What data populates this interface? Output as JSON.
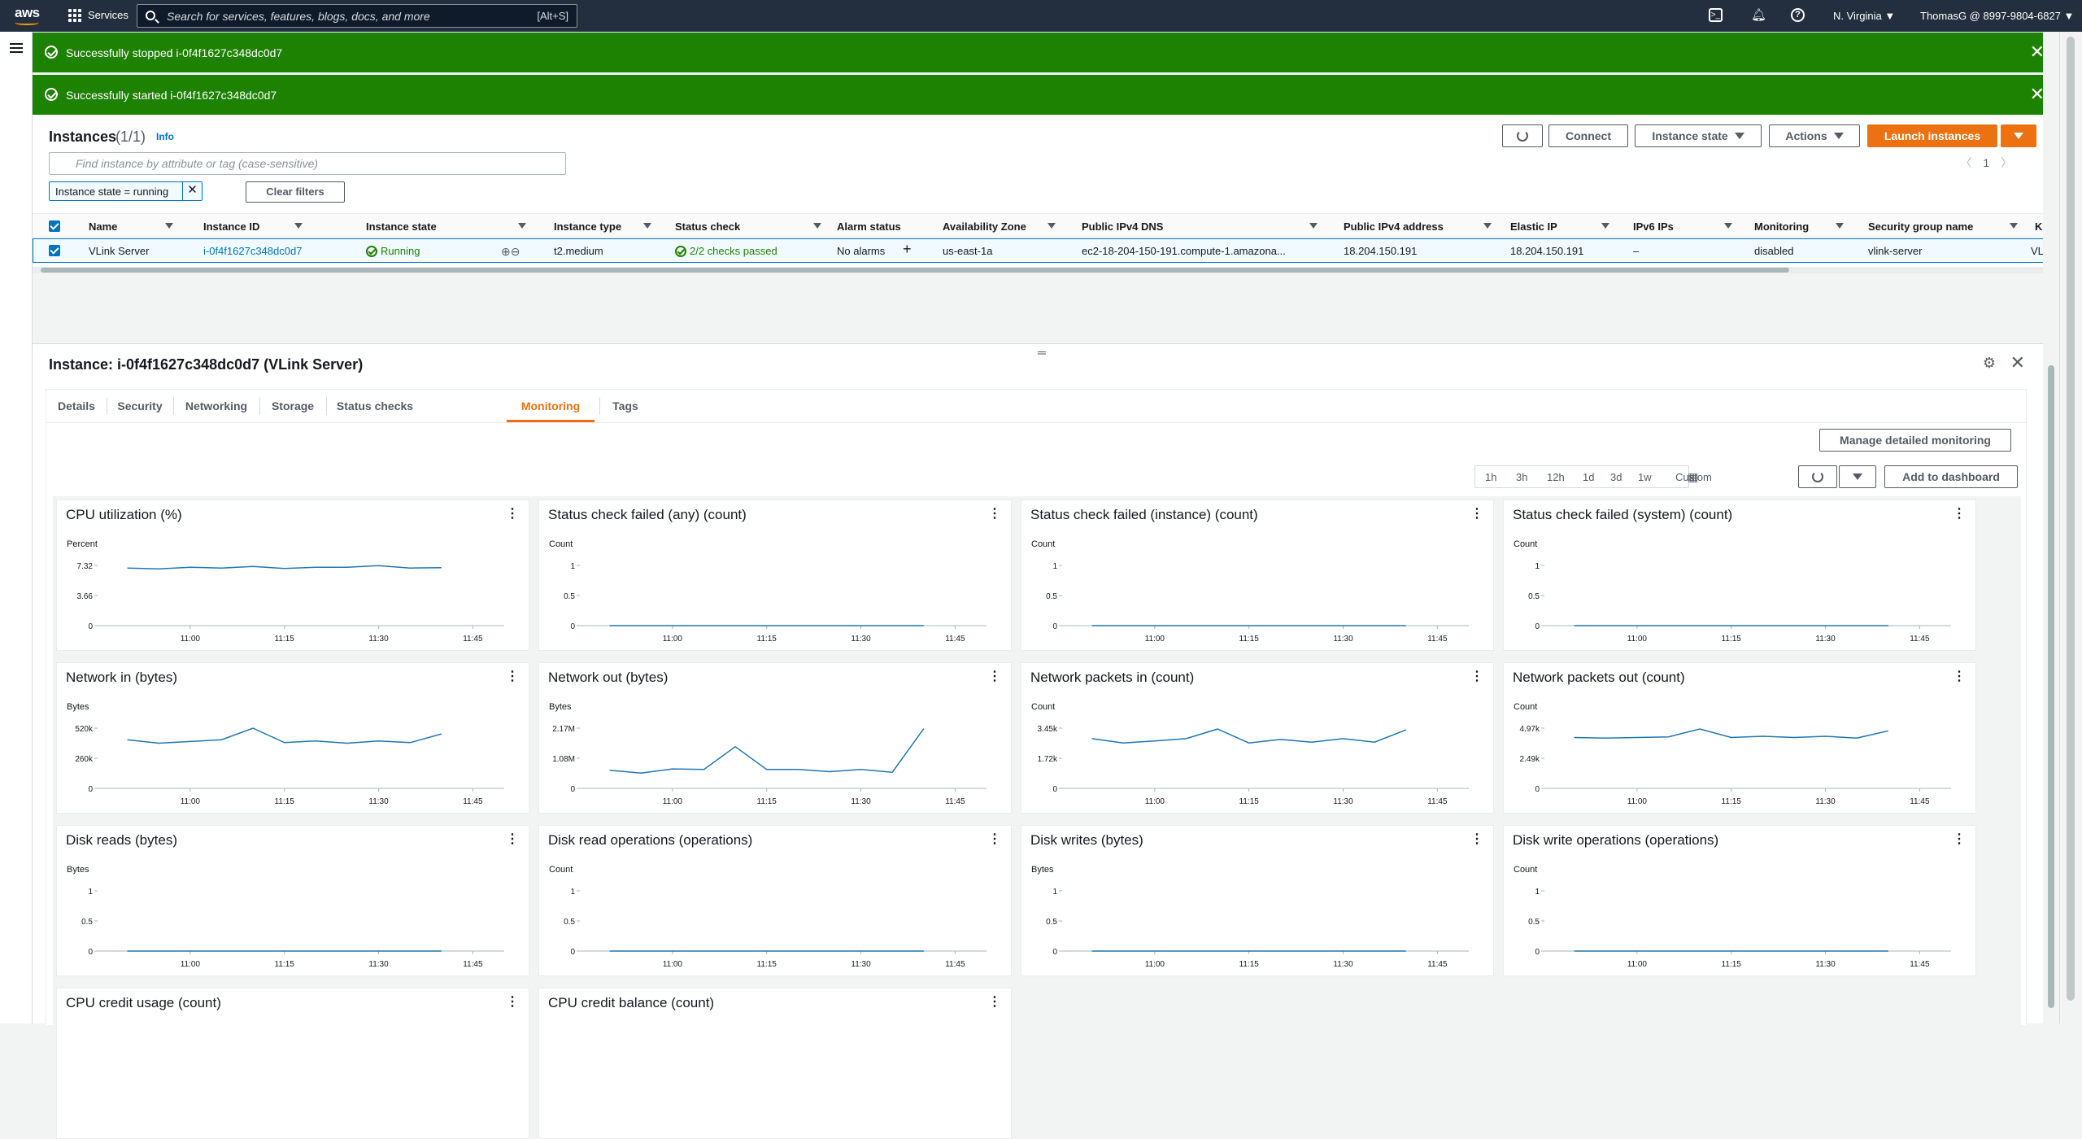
{
  "topnav": {
    "logo": "aws",
    "services_label": "Services",
    "search_placeholder": "Search for services, features, blogs, docs, and more",
    "search_shortcut": "[Alt+S]",
    "region": "N. Virginia ▼",
    "account": "ThomasG @ 8997-9804-6827 ▼"
  },
  "flash": [
    {
      "message": "Successfully stopped i-0f4f1627c348dc0d7"
    },
    {
      "message": "Successfully started i-0f4f1627c348dc0d7"
    }
  ],
  "instances": {
    "title": "Instances",
    "count": "(1/1)",
    "info": "Info",
    "buttons": {
      "connect": "Connect",
      "instance_state": "Instance state",
      "actions": "Actions",
      "launch": "Launch instances"
    },
    "filter_placeholder": "Find instance by attribute or tag (case-sensitive)",
    "filter_token": "Instance state = running",
    "clear_filters": "Clear filters",
    "page": "1",
    "columns": [
      "Name",
      "Instance ID",
      "Instance state",
      "Instance type",
      "Status check",
      "Alarm status",
      "Availability Zone",
      "Public IPv4 DNS",
      "Public IPv4 address",
      "Elastic IP",
      "IPv6 IPs",
      "Monitoring",
      "Security group name",
      "Key"
    ],
    "row": {
      "name": "VLink Server",
      "instance_id": "i-0f4f1627c348dc0d7",
      "state": "Running",
      "type": "t2.medium",
      "status_check": "2/2 checks passed",
      "alarm": "No alarms",
      "az": "us-east-1a",
      "dns": "ec2-18-204-150-191.compute-1.amazona...",
      "ipv4": "18.204.150.191",
      "elastic_ip": "18.204.150.191",
      "ipv6": "–",
      "monitoring": "disabled",
      "sg": "vlink-server",
      "key": "VLin"
    }
  },
  "detail": {
    "title": "Instance: i-0f4f1627c348dc0d7 (VLink Server)",
    "tabs": [
      "Details",
      "Security",
      "Networking",
      "Storage",
      "Status checks",
      "Monitoring",
      "Tags"
    ],
    "active_tab": "Monitoring",
    "manage_monitoring": "Manage detailed monitoring",
    "ranges": [
      "1h",
      "3h",
      "12h",
      "1d",
      "3d",
      "1w",
      "Custom"
    ],
    "add_dashboard": "Add to dashboard"
  },
  "chart_data": [
    {
      "type": "line",
      "title": "CPU utilization (%)",
      "ylabel": "Percent",
      "yticks": [
        "7.32",
        "3.66",
        "0"
      ],
      "ylim": [
        0,
        7.32
      ],
      "xticks": [
        "11:00",
        "11:15",
        "11:30",
        "11:45"
      ],
      "series": [
        {
          "x": [
            "10:50",
            "10:55",
            "11:00",
            "11:05",
            "11:10",
            "11:15",
            "11:20",
            "11:25",
            "11:30",
            "11:35",
            "11:40"
          ],
          "values": [
            7.0,
            6.9,
            7.1,
            7.0,
            7.2,
            6.95,
            7.1,
            7.1,
            7.3,
            7.0,
            7.05
          ]
        }
      ]
    },
    {
      "type": "line",
      "title": "Status check failed (any) (count)",
      "ylabel": "Count",
      "yticks": [
        "1",
        "0.5",
        "0"
      ],
      "ylim": [
        0,
        1
      ],
      "xticks": [
        "11:00",
        "11:15",
        "11:30",
        "11:45"
      ],
      "series": [
        {
          "x": [
            "10:50",
            "11:40"
          ],
          "values": [
            0,
            0
          ]
        }
      ]
    },
    {
      "type": "line",
      "title": "Status check failed (instance) (count)",
      "ylabel": "Count",
      "yticks": [
        "1",
        "0.5",
        "0"
      ],
      "ylim": [
        0,
        1
      ],
      "xticks": [
        "11:00",
        "11:15",
        "11:30",
        "11:45"
      ],
      "series": [
        {
          "x": [
            "10:50",
            "11:40"
          ],
          "values": [
            0,
            0
          ]
        }
      ]
    },
    {
      "type": "line",
      "title": "Status check failed (system) (count)",
      "ylabel": "Count",
      "yticks": [
        "1",
        "0.5",
        "0"
      ],
      "ylim": [
        0,
        1
      ],
      "xticks": [
        "11:00",
        "11:15",
        "11:30",
        "11:45"
      ],
      "series": [
        {
          "x": [
            "10:50",
            "11:40"
          ],
          "values": [
            0,
            0
          ]
        }
      ]
    },
    {
      "type": "line",
      "title": "Network in (bytes)",
      "ylabel": "Bytes",
      "yticks": [
        "520k",
        "260k",
        "0"
      ],
      "ylim": [
        0,
        520000
      ],
      "xticks": [
        "11:00",
        "11:15",
        "11:30",
        "11:45"
      ],
      "series": [
        {
          "x": [
            "10:50",
            "10:55",
            "11:00",
            "11:05",
            "11:10",
            "11:15",
            "11:20",
            "11:25",
            "11:30",
            "11:35",
            "11:40"
          ],
          "values": [
            420000,
            390000,
            405000,
            420000,
            520000,
            395000,
            410000,
            390000,
            410000,
            395000,
            470000
          ]
        }
      ]
    },
    {
      "type": "line",
      "title": "Network out (bytes)",
      "ylabel": "Bytes",
      "yticks": [
        "2.17M",
        "1.08M",
        "0"
      ],
      "ylim": [
        0,
        2170000
      ],
      "xticks": [
        "11:00",
        "11:15",
        "11:30",
        "11:45"
      ],
      "series": [
        {
          "x": [
            "10:50",
            "10:55",
            "11:00",
            "11:05",
            "11:10",
            "11:15",
            "11:20",
            "11:25",
            "11:30",
            "11:35",
            "11:40"
          ],
          "values": [
            650000,
            550000,
            700000,
            680000,
            1500000,
            680000,
            680000,
            600000,
            680000,
            580000,
            2150000
          ]
        }
      ]
    },
    {
      "type": "line",
      "title": "Network packets in (count)",
      "ylabel": "Count",
      "yticks": [
        "3.45k",
        "1.72k",
        "0"
      ],
      "ylim": [
        0,
        3450
      ],
      "xticks": [
        "11:00",
        "11:15",
        "11:30",
        "11:45"
      ],
      "series": [
        {
          "x": [
            "10:50",
            "10:55",
            "11:00",
            "11:05",
            "11:10",
            "11:15",
            "11:20",
            "11:25",
            "11:30",
            "11:35",
            "11:40"
          ],
          "values": [
            2850,
            2600,
            2720,
            2850,
            3400,
            2600,
            2800,
            2650,
            2850,
            2650,
            3350
          ]
        }
      ]
    },
    {
      "type": "line",
      "title": "Network packets out (count)",
      "ylabel": "Count",
      "yticks": [
        "4.97k",
        "2.49k",
        "0"
      ],
      "ylim": [
        0,
        4970
      ],
      "xticks": [
        "11:00",
        "11:15",
        "11:30",
        "11:45"
      ],
      "series": [
        {
          "x": [
            "10:50",
            "10:55",
            "11:00",
            "11:05",
            "11:10",
            "11:15",
            "11:20",
            "11:25",
            "11:30",
            "11:35",
            "11:40"
          ],
          "values": [
            4200,
            4150,
            4200,
            4250,
            4900,
            4200,
            4300,
            4200,
            4300,
            4150,
            4750
          ]
        }
      ]
    },
    {
      "type": "line",
      "title": "Disk reads (bytes)",
      "ylabel": "Bytes",
      "yticks": [
        "1",
        "0.5",
        "0"
      ],
      "ylim": [
        0,
        1
      ],
      "xticks": [
        "11:00",
        "11:15",
        "11:30",
        "11:45"
      ],
      "series": [
        {
          "x": [
            "10:50",
            "11:40"
          ],
          "values": [
            0,
            0
          ]
        }
      ]
    },
    {
      "type": "line",
      "title": "Disk read operations (operations)",
      "ylabel": "Count",
      "yticks": [
        "1",
        "0.5",
        "0"
      ],
      "ylim": [
        0,
        1
      ],
      "xticks": [
        "11:00",
        "11:15",
        "11:30",
        "11:45"
      ],
      "series": [
        {
          "x": [
            "10:50",
            "11:40"
          ],
          "values": [
            0,
            0
          ]
        }
      ]
    },
    {
      "type": "line",
      "title": "Disk writes (bytes)",
      "ylabel": "Bytes",
      "yticks": [
        "1",
        "0.5",
        "0"
      ],
      "ylim": [
        0,
        1
      ],
      "xticks": [
        "11:00",
        "11:15",
        "11:30",
        "11:45"
      ],
      "series": [
        {
          "x": [
            "10:50",
            "11:40"
          ],
          "values": [
            0,
            0
          ]
        }
      ]
    },
    {
      "type": "line",
      "title": "Disk write operations (operations)",
      "ylabel": "Count",
      "yticks": [
        "1",
        "0.5",
        "0"
      ],
      "ylim": [
        0,
        1
      ],
      "xticks": [
        "11:00",
        "11:15",
        "11:30",
        "11:45"
      ],
      "series": [
        {
          "x": [
            "10:50",
            "11:40"
          ],
          "values": [
            0,
            0
          ]
        }
      ]
    },
    {
      "type": "line",
      "title": "CPU credit usage (count)",
      "series": []
    },
    {
      "type": "line",
      "title": "CPU credit balance (count)",
      "series": []
    }
  ]
}
